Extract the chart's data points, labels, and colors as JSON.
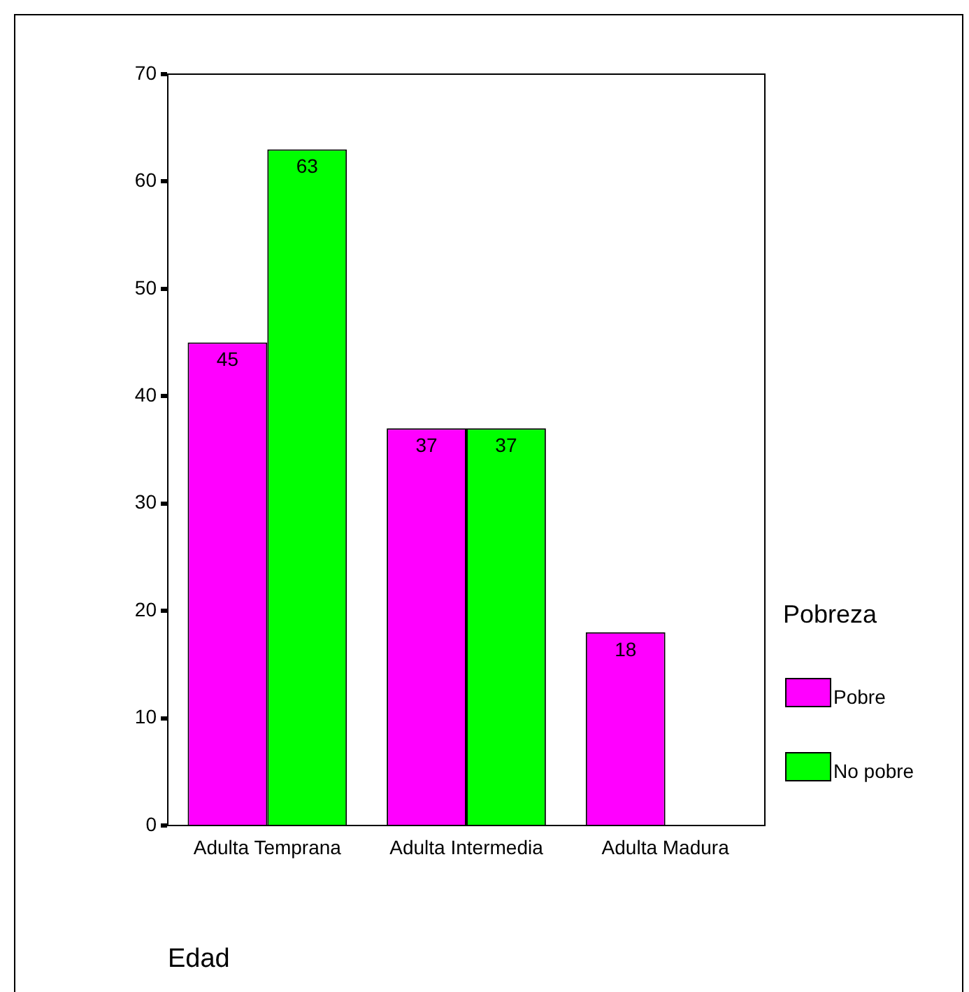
{
  "chart_data": {
    "type": "bar",
    "xlabel": "Edad",
    "legend_title": "Pobreza",
    "categories": [
      "Adulta Temprana",
      "Adulta Intermedia",
      "Adulta Madura"
    ],
    "series": [
      {
        "name": "Pobre",
        "color": "#ff00ff",
        "values": [
          45,
          37,
          18
        ]
      },
      {
        "name": "No pobre",
        "color": "#00ff00",
        "values": [
          63,
          37,
          null
        ]
      }
    ],
    "ylim": [
      0,
      70
    ],
    "yticks": [
      0,
      10,
      20,
      30,
      40,
      50,
      60,
      70
    ],
    "grid": false,
    "legend": "right",
    "data_labels": true
  }
}
